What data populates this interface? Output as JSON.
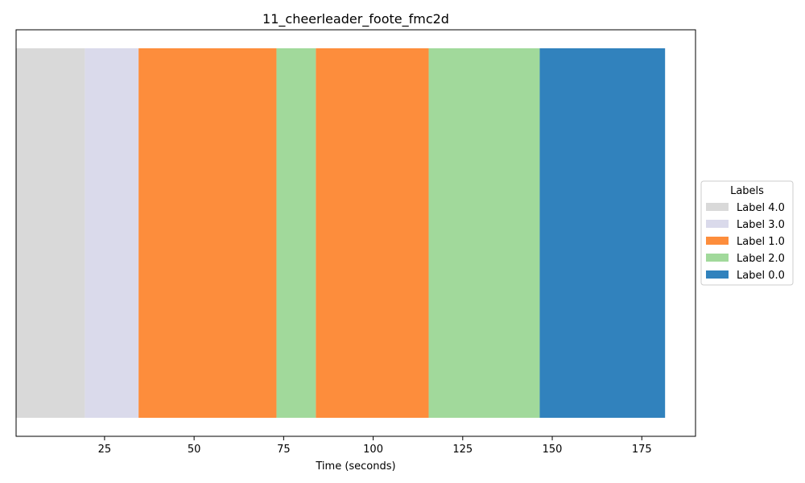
{
  "chart_data": {
    "type": "bar",
    "orientation": "horizontal-timeline",
    "title": "11_cheerleader_foote_fmc2d",
    "xlabel": "Time (seconds)",
    "ylabel": "",
    "xlim": [
      0.3,
      190
    ],
    "xticks": [
      25,
      50,
      75,
      100,
      125,
      150,
      175
    ],
    "xtick_labels": [
      "25",
      "50",
      "75",
      "100",
      "125",
      "150",
      "175"
    ],
    "grid": false,
    "segments": [
      {
        "label": "Label 4.0",
        "start": 0.3,
        "end": 19.5
      },
      {
        "label": "Label 3.0",
        "start": 19.5,
        "end": 34.5
      },
      {
        "label": "Label 1.0",
        "start": 34.5,
        "end": 73
      },
      {
        "label": "Label 2.0",
        "start": 73,
        "end": 84
      },
      {
        "label": "Label 1.0",
        "start": 84,
        "end": 115.5
      },
      {
        "label": "Label 2.0",
        "start": 115.5,
        "end": 146.5
      },
      {
        "label": "Label 0.0",
        "start": 146.5,
        "end": 181.5
      }
    ],
    "colors": {
      "Label 4.0": "#d9d9d9",
      "Label 3.0": "#dadaeb",
      "Label 1.0": "#fd8d3c",
      "Label 2.0": "#a1d99b",
      "Label 0.0": "#3182bd"
    },
    "legend": {
      "title": "Labels",
      "placement": "center-right outside",
      "entries": [
        "Label 4.0",
        "Label 3.0",
        "Label 1.0",
        "Label 2.0",
        "Label 0.0"
      ]
    }
  }
}
